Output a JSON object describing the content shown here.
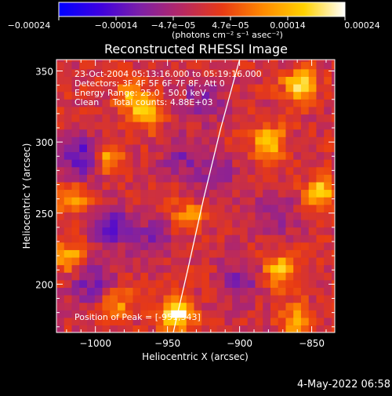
{
  "chart_data": {
    "type": "heatmap",
    "title": "Reconstructed RHESSI Image",
    "xlabel": "Heliocentric X (arcsec)",
    "ylabel": "Heliocentric Y (arcsec)",
    "xlim": [
      -1027,
      -834
    ],
    "ylim": [
      166,
      358
    ],
    "x_ticks": [
      -1000,
      -950,
      -900,
      -850
    ],
    "x_tick_labels": [
      "−1000",
      "−950",
      "−900",
      "−850"
    ],
    "y_ticks": [
      200,
      250,
      300,
      350
    ],
    "y_tick_labels": [
      "200",
      "250",
      "300",
      "350"
    ],
    "colorbar": {
      "range": [
        -0.00024,
        0.00024
      ],
      "tick_labels": [
        "−0.00024",
        "−0.00014",
        "−4.7e−05",
        "4.7e−05",
        "0.00014",
        "0.00024"
      ],
      "units_label": "(photons cm⁻² s⁻¹ asec⁻²)",
      "colors": [
        "#0000ff",
        "#3d00e0",
        "#7e20a6",
        "#b62864",
        "#e83a14",
        "#ff8a00",
        "#ffd200",
        "#ffffff"
      ]
    },
    "annotations": [
      "23-Oct-2004 05:13:16.000 to 05:19:16.000",
      "Detectors: 3F 4F 5F 6F 7F 8F, Att 0",
      "Energy Range: 25.0 - 50.0 keV",
      "Clean     Total counts: 4.88E+03"
    ],
    "peak_label": "Position of Peak = [-951,343]",
    "peak_position": [
      -951,
      343
    ],
    "limb_curve": [
      [
        -946,
        166
      ],
      [
        -936,
        210
      ],
      [
        -925,
        260
      ],
      [
        -913,
        310
      ],
      [
        -900,
        358
      ]
    ],
    "hot_sources": [
      {
        "x": -944,
        "y": 180,
        "strength": 0.00024
      },
      {
        "x": -880,
        "y": 300,
        "strength": 0.00018
      },
      {
        "x": -858,
        "y": 340,
        "strength": 0.0002
      },
      {
        "x": -843,
        "y": 265,
        "strength": 0.00017
      },
      {
        "x": -872,
        "y": 210,
        "strength": 0.00016
      },
      {
        "x": -860,
        "y": 175,
        "strength": 0.00014
      },
      {
        "x": -965,
        "y": 320,
        "strength": 0.00014
      },
      {
        "x": -992,
        "y": 290,
        "strength": 0.00015
      },
      {
        "x": -975,
        "y": 333,
        "strength": 0.00012
      },
      {
        "x": -985,
        "y": 186,
        "strength": 0.00012
      },
      {
        "x": -1018,
        "y": 220,
        "strength": 0.00013
      },
      {
        "x": -1015,
        "y": 260,
        "strength": 0.00011
      },
      {
        "x": -935,
        "y": 248,
        "strength": 0.00011
      }
    ],
    "cold_sources": [
      {
        "x": -1010,
        "y": 290,
        "strength": -0.00015
      },
      {
        "x": -990,
        "y": 240,
        "strength": -0.00012
      },
      {
        "x": -1002,
        "y": 200,
        "strength": -0.0001
      },
      {
        "x": -960,
        "y": 232,
        "strength": -8e-05
      },
      {
        "x": -900,
        "y": 202,
        "strength": -9e-05
      },
      {
        "x": -925,
        "y": 330,
        "strength": -9e-05
      },
      {
        "x": -915,
        "y": 275,
        "strength": -8e-05
      },
      {
        "x": -875,
        "y": 250,
        "strength": -7e-05
      },
      {
        "x": -940,
        "y": 290,
        "strength": -8e-05
      }
    ]
  },
  "footer": {
    "timestamp": "4-May-2022 06:58"
  }
}
